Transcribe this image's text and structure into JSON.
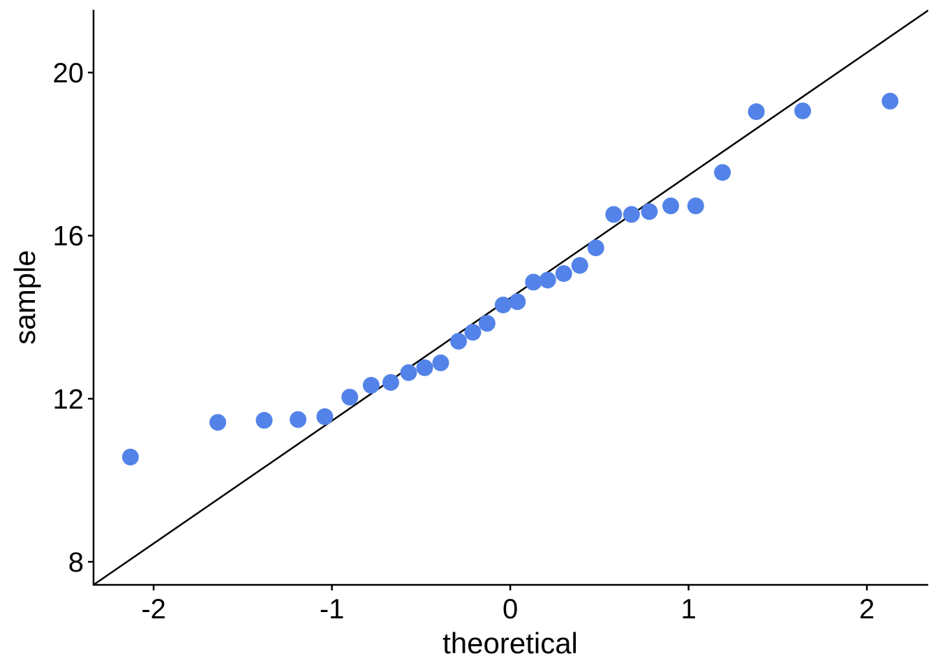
{
  "chart_data": {
    "type": "scatter",
    "subtype": "qq-plot",
    "title": "",
    "xlabel": "theoretical",
    "ylabel": "sample",
    "xlim": [
      -2.337,
      2.344
    ],
    "ylim": [
      7.435,
      21.54
    ],
    "xticks": [
      -2,
      -1,
      0,
      1,
      2
    ],
    "xtick_labels": [
      "-2",
      "-1",
      "0",
      "1",
      "2"
    ],
    "yticks": [
      8,
      12,
      16,
      20
    ],
    "ytick_labels": [
      "8",
      "12",
      "16",
      "20"
    ],
    "grid": false,
    "point_color": "#5383e8",
    "line_color": "#000000",
    "reference_line": {
      "intercept": 14.47,
      "slope": 3.01
    },
    "points": {
      "x": [
        -2.13,
        -1.64,
        -1.38,
        -1.19,
        -1.04,
        -0.9,
        -0.78,
        -0.67,
        -0.57,
        -0.48,
        -0.39,
        -0.29,
        -0.21,
        -0.13,
        -0.04,
        0.04,
        0.13,
        0.21,
        0.3,
        0.39,
        0.48,
        0.58,
        0.68,
        0.78,
        0.9,
        1.04,
        1.19,
        1.38,
        1.64,
        2.13
      ],
      "y": [
        10.57,
        11.42,
        11.47,
        11.49,
        11.56,
        12.04,
        12.33,
        12.4,
        12.64,
        12.76,
        12.88,
        13.41,
        13.63,
        13.85,
        14.3,
        14.38,
        14.86,
        14.91,
        15.07,
        15.27,
        15.7,
        16.52,
        16.52,
        16.59,
        16.73,
        16.73,
        17.55,
        19.04,
        19.06,
        19.3
      ]
    }
  }
}
